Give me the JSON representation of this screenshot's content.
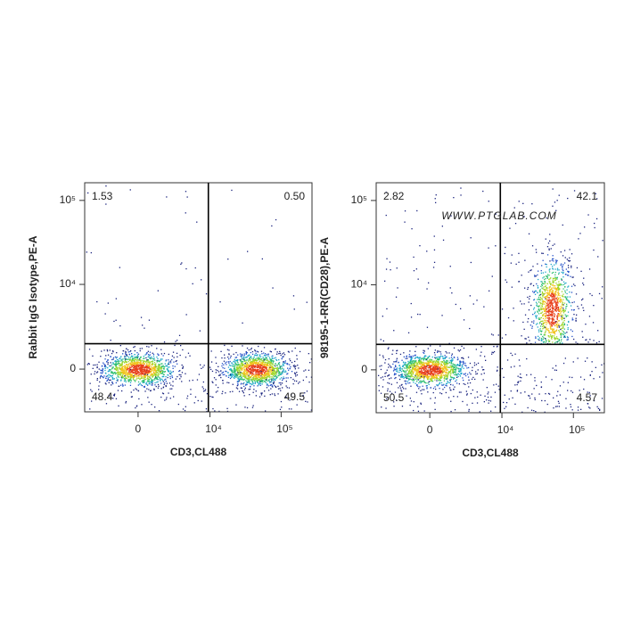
{
  "chart_data": [
    {
      "type": "scatter",
      "xlabel": "CD3,CL488",
      "ylabel": "Rabbit IgG Isotype,PE-A",
      "scale": "biexponential",
      "xlim": [
        -5400,
        270000
      ],
      "ylim": [
        -2900,
        162000
      ],
      "xticks": [
        0,
        {
          "value": 10000,
          "label": "10⁴"
        },
        {
          "value": 100000,
          "label": "10⁵"
        }
      ],
      "yticks": [
        0,
        {
          "value": 10000,
          "label": "10⁴"
        },
        {
          "value": 100000,
          "label": "10⁵"
        }
      ],
      "gate": {
        "x": 9500,
        "y": 1500
      },
      "quadrants": {
        "values": [
          1.53,
          0.5,
          48.4,
          49.5
        ],
        "value_labels": [
          "1.53",
          "0.50",
          "48.4",
          "49.5"
        ]
      }
    },
    {
      "type": "scatter",
      "xlabel": "CD3,CL488",
      "ylabel": "98195-1-RR(CD28),PE-A",
      "scale": "biexponential",
      "xlim": [
        -5400,
        270000
      ],
      "ylim": [
        -2900,
        162000
      ],
      "xticks": [
        0,
        {
          "value": 10000,
          "label": "10⁴"
        },
        {
          "value": 100000,
          "label": "10⁵"
        }
      ],
      "yticks": [
        0,
        {
          "value": 10000,
          "label": "10⁴"
        },
        {
          "value": 100000,
          "label": "10⁵"
        }
      ],
      "gate": {
        "x": 9500,
        "y": 1500
      },
      "quadrants": {
        "values": [
          2.82,
          42.1,
          50.5,
          4.57
        ],
        "value_labels": [
          "2.82",
          "42.1",
          "50.5",
          "4.57"
        ]
      },
      "watermark": "WWW.PTGLAB.COM"
    }
  ]
}
